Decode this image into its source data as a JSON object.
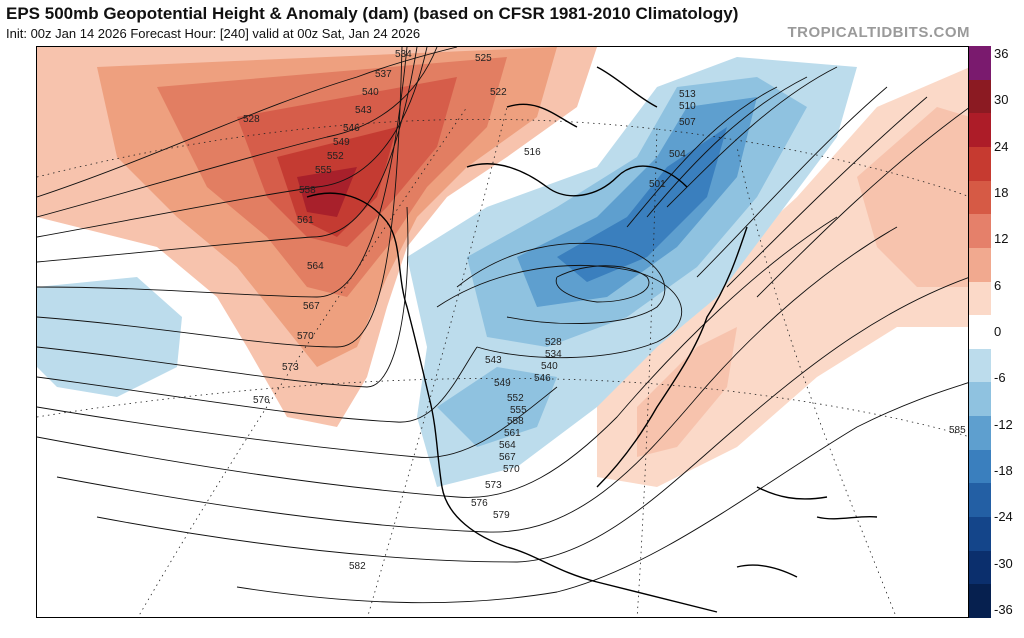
{
  "header": {
    "title": "EPS 500mb Geopotential Height & Anomaly (dam) (based on CFSR 1981-2010 Climatology)",
    "subtitle": "Init: 00z Jan 14 2026   Forecast Hour: [240]   valid at 00z Sat, Jan 24 2026",
    "brand": "TROPICALTIDBITS.COM"
  },
  "chart_data": {
    "type": "heatmap",
    "variable": "500mb geopotential height anomaly (dam)",
    "colorbar": {
      "ticks": [
        "36",
        "30",
        "24",
        "18",
        "12",
        "6",
        "0",
        "-6",
        "-12",
        "-18",
        "-24",
        "-30",
        "-36"
      ],
      "colors": [
        "#7a1a6e",
        "#8b1a22",
        "#ad1c28",
        "#c63a30",
        "#d65a45",
        "#e5806a",
        "#f1a98f",
        "#fbd9c8",
        "#ffffff",
        "#bcdcec",
        "#8fc2e0",
        "#5e9fcf",
        "#3a7fbe",
        "#235fa4",
        "#14458a",
        "#0b2f6d",
        "#06204f"
      ]
    },
    "contour_labels": [
      "534",
      "537",
      "540",
      "543",
      "546",
      "549",
      "552",
      "555",
      "558",
      "561",
      "564",
      "567",
      "570",
      "573",
      "576",
      "528",
      "525",
      "522",
      "516",
      "513",
      "510",
      "507",
      "504",
      "501",
      "528",
      "534",
      "540",
      "543",
      "546",
      "549",
      "552",
      "555",
      "558",
      "561",
      "564",
      "567",
      "570",
      "573",
      "576",
      "579",
      "582",
      "585"
    ]
  },
  "map": {
    "region": "North America / North Pacific / Atlantic"
  }
}
